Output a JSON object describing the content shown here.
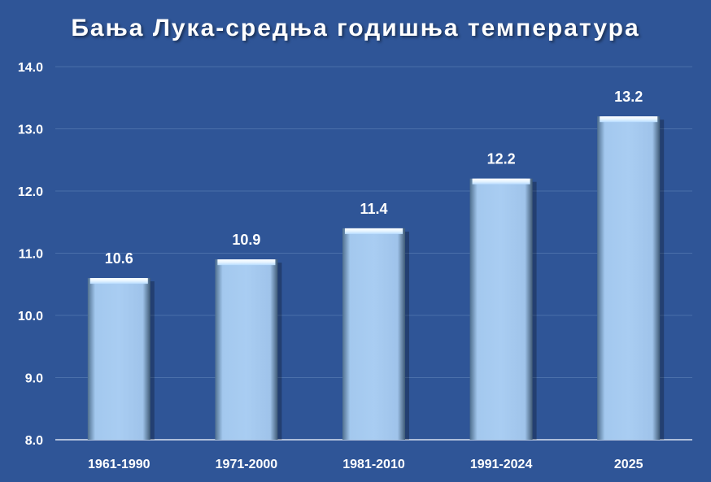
{
  "colors": {
    "background": "#2f5597",
    "bar_fill": "#a9cdf2",
    "grid": "#4a6faa",
    "text": "#ffffff"
  },
  "chart_data": {
    "type": "bar",
    "title": "Бања Лука-средња годишња температура",
    "categories": [
      "1961-1990",
      "1971-2000",
      "1981-2010",
      "1991-2024",
      "2025"
    ],
    "values": [
      10.6,
      10.9,
      11.4,
      12.2,
      13.2
    ],
    "value_labels": [
      "10.6",
      "10.9",
      "11.4",
      "12.2",
      "13.2"
    ],
    "yticks": [
      "8.0",
      "9.0",
      "10.0",
      "11.0",
      "12.0",
      "13.0",
      "14.0"
    ],
    "xlabel": "",
    "ylabel": "",
    "ylim": [
      8.0,
      14.0
    ],
    "grid": true,
    "legend": "none"
  }
}
